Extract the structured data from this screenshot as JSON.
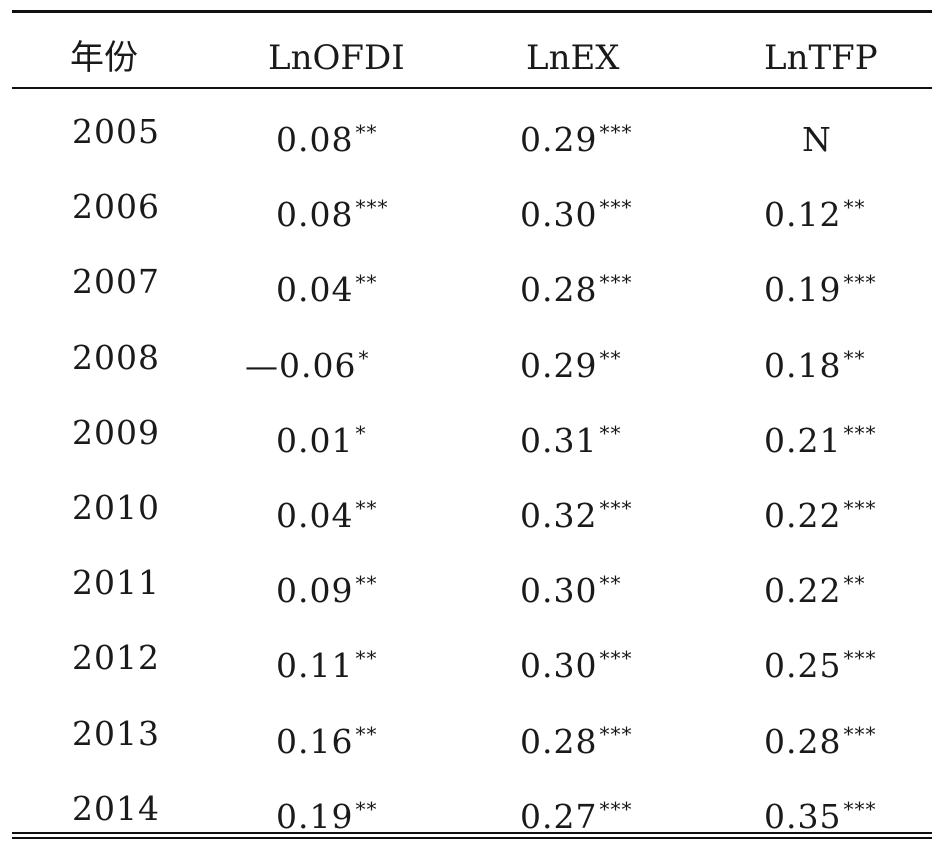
{
  "table": {
    "headers": [
      "年份",
      "LnOFDI",
      "LnEX",
      "LnTFP"
    ],
    "rows": [
      {
        "year": "2005",
        "ofdi": "0.08",
        "ofdi_sig": "**",
        "ex": "0.29",
        "ex_sig": "***",
        "tfp": "N",
        "tfp_sig": ""
      },
      {
        "year": "2006",
        "ofdi": "0.08",
        "ofdi_sig": "***",
        "ex": "0.30",
        "ex_sig": "***",
        "tfp": "0.12",
        "tfp_sig": "**"
      },
      {
        "year": "2007",
        "ofdi": "0.04",
        "ofdi_sig": "**",
        "ex": "0.28",
        "ex_sig": "***",
        "tfp": "0.19",
        "tfp_sig": "***"
      },
      {
        "year": "2008",
        "ofdi": "—0.06",
        "ofdi_sig": "*",
        "ex": "0.29",
        "ex_sig": "**",
        "tfp": "0.18",
        "tfp_sig": "**"
      },
      {
        "year": "2009",
        "ofdi": "0.01",
        "ofdi_sig": "*",
        "ex": "0.31",
        "ex_sig": "**",
        "tfp": "0.21",
        "tfp_sig": "***"
      },
      {
        "year": "2010",
        "ofdi": "0.04",
        "ofdi_sig": "**",
        "ex": "0.32",
        "ex_sig": "***",
        "tfp": "0.22",
        "tfp_sig": "***"
      },
      {
        "year": "2011",
        "ofdi": "0.09",
        "ofdi_sig": "**",
        "ex": "0.30",
        "ex_sig": "**",
        "tfp": "0.22",
        "tfp_sig": "**"
      },
      {
        "year": "2012",
        "ofdi": "0.11",
        "ofdi_sig": "**",
        "ex": "0.30",
        "ex_sig": "***",
        "tfp": "0.25",
        "tfp_sig": "***"
      },
      {
        "year": "2013",
        "ofdi": "0.16",
        "ofdi_sig": "**",
        "ex": "0.28",
        "ex_sig": "***",
        "tfp": "0.28",
        "tfp_sig": "***"
      },
      {
        "year": "2014",
        "ofdi": "0.19",
        "ofdi_sig": "**",
        "ex": "0.27",
        "ex_sig": "***",
        "tfp": "0.35",
        "tfp_sig": "***"
      }
    ]
  }
}
